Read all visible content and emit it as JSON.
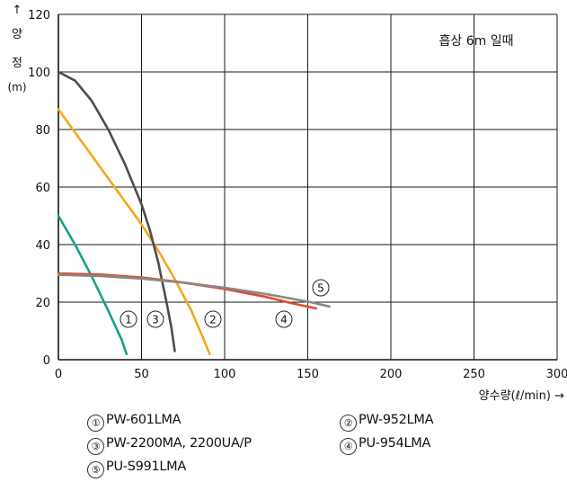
{
  "chart_data": {
    "type": "line",
    "annotation": "흡상 6m 일때",
    "ylabel": [
      "↑",
      "양",
      "정",
      "(m)"
    ],
    "xlabel": "양수량(ℓ/min) →",
    "xlim": [
      0,
      300
    ],
    "ylim": [
      0,
      120
    ],
    "xticks": [
      0,
      50,
      100,
      150,
      200,
      250,
      300
    ],
    "yticks": [
      0,
      20,
      40,
      60,
      80,
      100,
      120
    ],
    "grid": true,
    "series": [
      {
        "marker": "①",
        "name": "PW-601LMA",
        "color": "#1aa187",
        "points": [
          [
            0,
            50
          ],
          [
            10,
            40
          ],
          [
            20,
            29
          ],
          [
            30,
            17
          ],
          [
            38,
            7
          ],
          [
            41,
            2
          ]
        ]
      },
      {
        "marker": "②",
        "name": "PW-952LMA",
        "color": "#f4a81d",
        "points": [
          [
            0,
            87
          ],
          [
            10,
            79
          ],
          [
            20,
            71
          ],
          [
            30,
            63
          ],
          [
            40,
            55
          ],
          [
            50,
            47
          ],
          [
            60,
            38
          ],
          [
            70,
            28
          ],
          [
            80,
            17
          ],
          [
            86,
            9
          ],
          [
            91,
            2
          ]
        ]
      },
      {
        "marker": "③",
        "name": "PW-2200MA, 2200UA/P",
        "color": "#4d4d4d",
        "points": [
          [
            0,
            100
          ],
          [
            10,
            97
          ],
          [
            20,
            90
          ],
          [
            30,
            80
          ],
          [
            40,
            68
          ],
          [
            50,
            54
          ],
          [
            55,
            45
          ],
          [
            60,
            34
          ],
          [
            65,
            20
          ],
          [
            68,
            11
          ],
          [
            70,
            3
          ]
        ]
      },
      {
        "marker": "④",
        "name": "PU-954LMA",
        "color": "#e04a2a",
        "points": [
          [
            0,
            30
          ],
          [
            25,
            29.6
          ],
          [
            50,
            28.6
          ],
          [
            75,
            26.8
          ],
          [
            100,
            24.6
          ],
          [
            125,
            21.8
          ],
          [
            140,
            19.7
          ],
          [
            155,
            17.8
          ]
        ]
      },
      {
        "marker": "⑤",
        "name": "PU-S991LMA",
        "color": "#888888",
        "points": [
          [
            0,
            29.5
          ],
          [
            25,
            29.1
          ],
          [
            50,
            28.2
          ],
          [
            75,
            26.8
          ],
          [
            100,
            25
          ],
          [
            125,
            22.8
          ],
          [
            150,
            20.2
          ],
          [
            163,
            18.5
          ]
        ]
      }
    ],
    "curve_labels": [
      "①",
      "③",
      "②",
      "④",
      "⑤"
    ]
  }
}
